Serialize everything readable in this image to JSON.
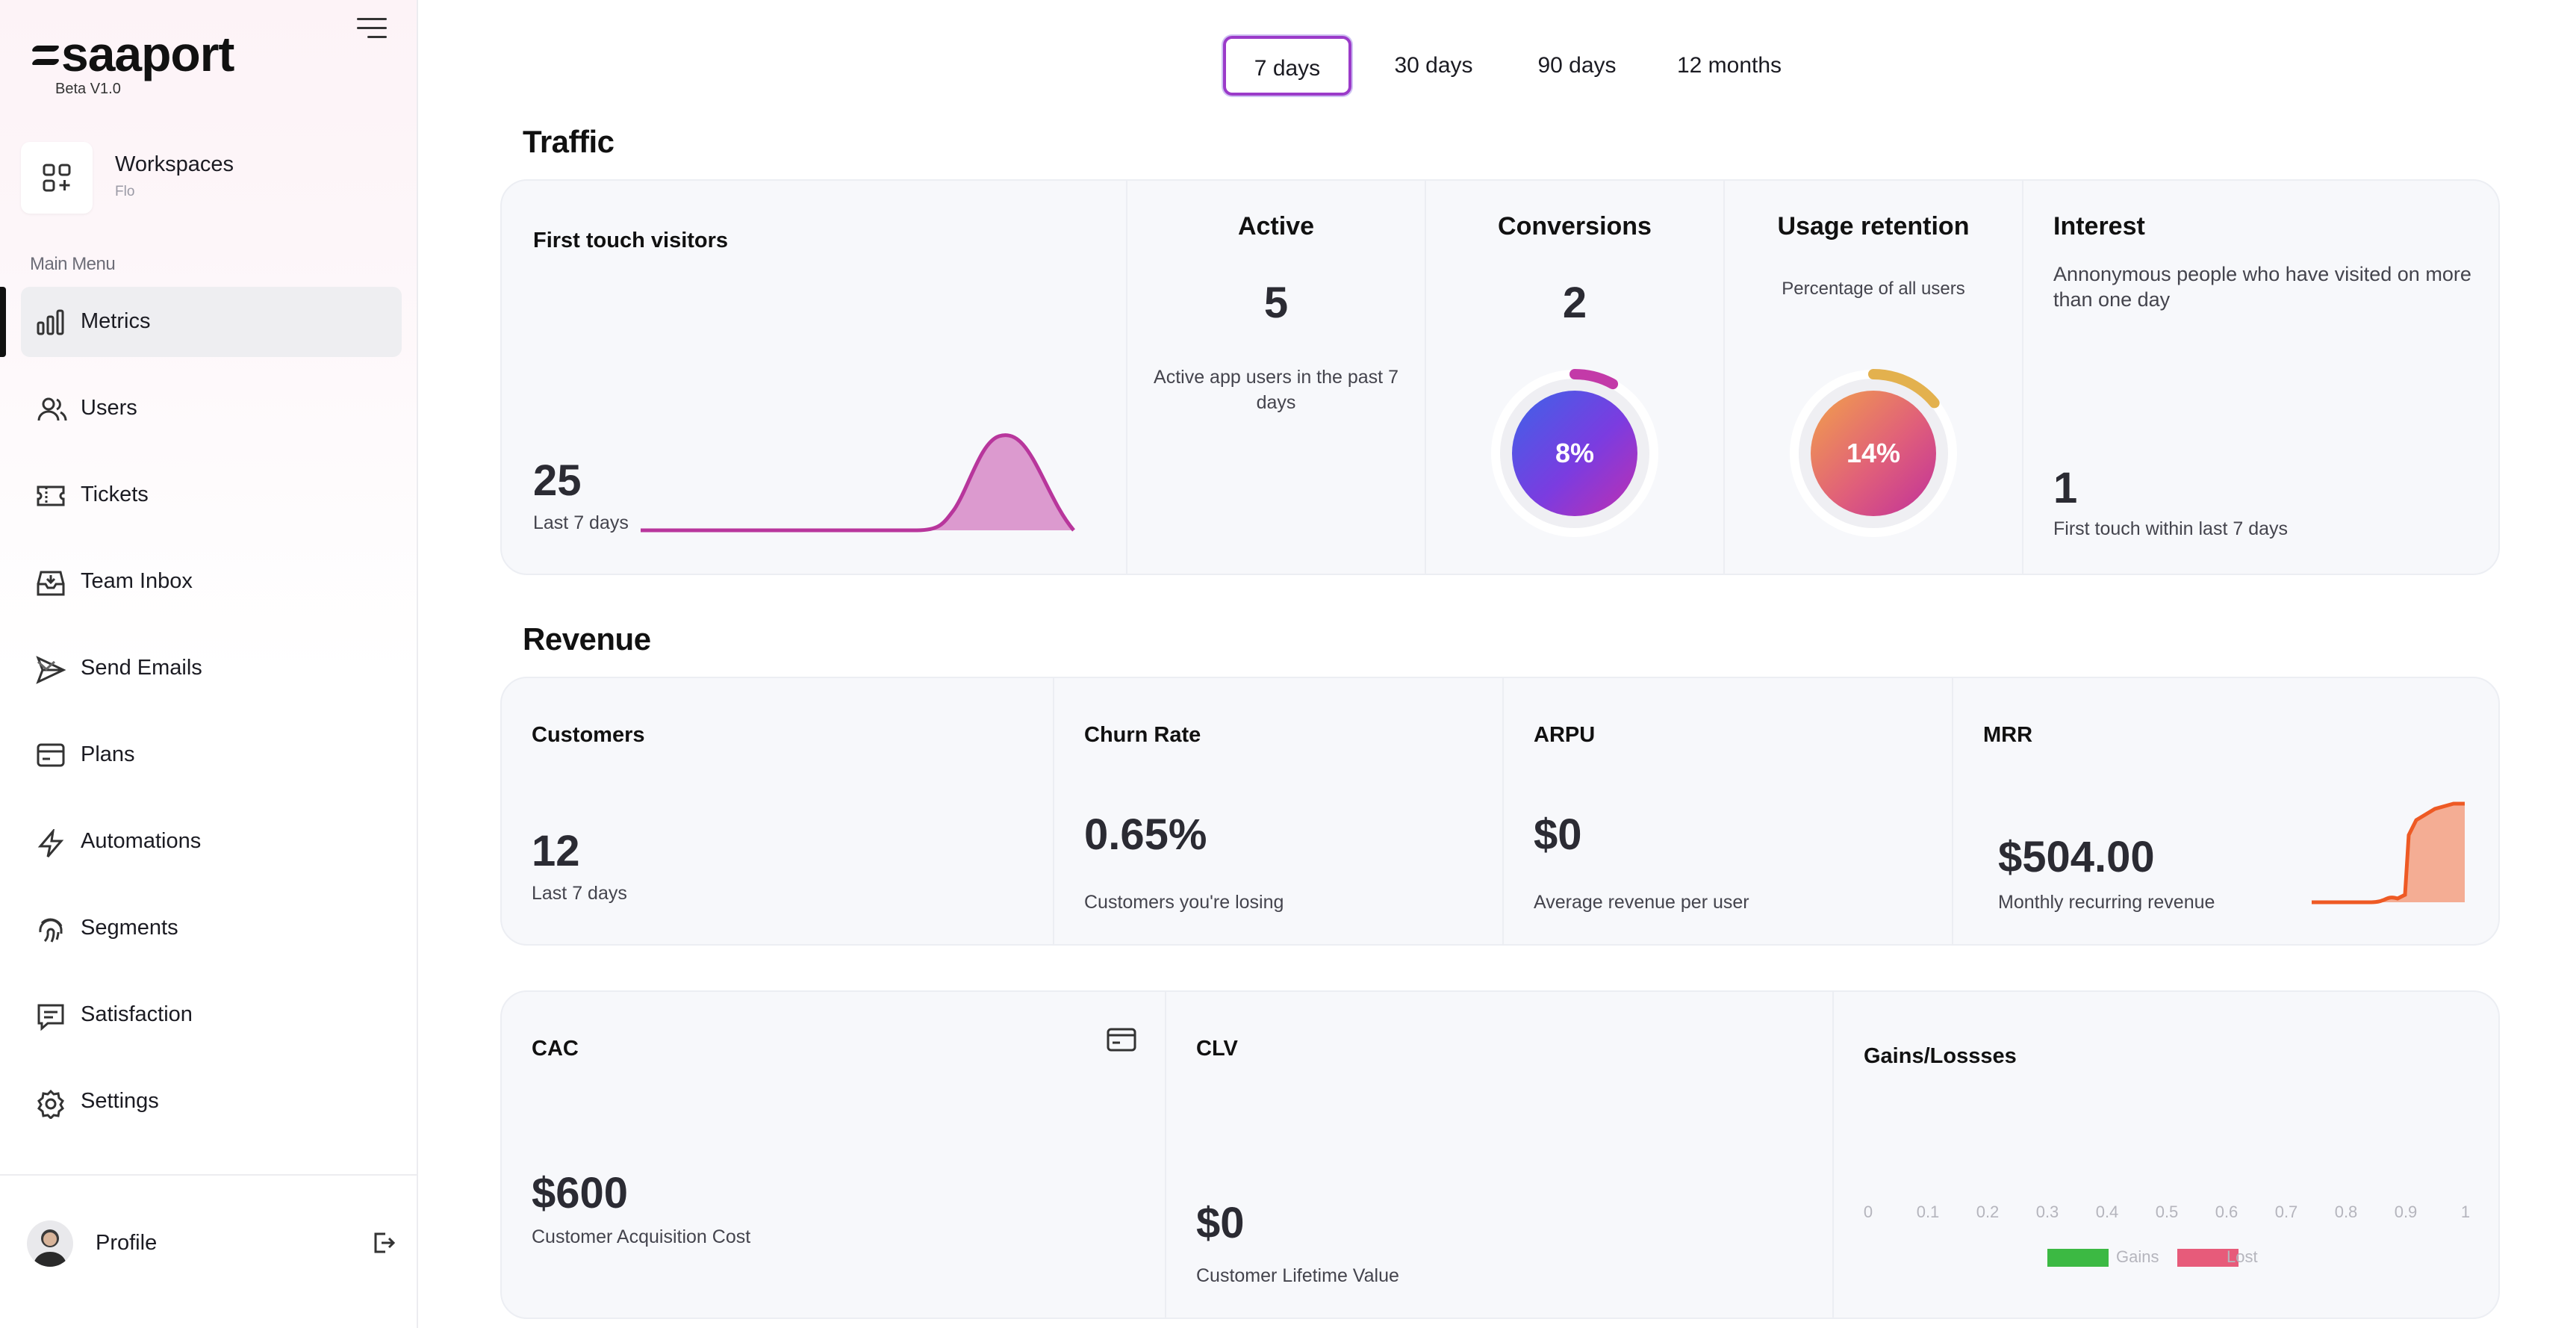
{
  "brand": {
    "logo_text": "saaport",
    "version": "Beta V1.0"
  },
  "workspace": {
    "title": "Workspaces",
    "subtitle": "Flo"
  },
  "sidebar": {
    "menu_label": "Main Menu",
    "items": [
      {
        "label": "Metrics",
        "icon": "bar-chart-icon",
        "active": true
      },
      {
        "label": "Users",
        "icon": "users-icon"
      },
      {
        "label": "Tickets",
        "icon": "ticket-icon"
      },
      {
        "label": "Team Inbox",
        "icon": "inbox-icon"
      },
      {
        "label": "Send Emails",
        "icon": "send-icon",
        "has_submenu": true
      },
      {
        "label": "Plans",
        "icon": "credit-card-icon"
      },
      {
        "label": "Automations",
        "icon": "lightning-icon"
      },
      {
        "label": "Segments",
        "icon": "fingerprint-icon"
      },
      {
        "label": "Satisfaction",
        "icon": "message-icon"
      },
      {
        "label": "Settings",
        "icon": "gear-icon"
      }
    ],
    "profile_label": "Profile"
  },
  "range_tabs": [
    {
      "label": "7 days",
      "active": true
    },
    {
      "label": "30 days"
    },
    {
      "label": "90 days"
    },
    {
      "label": "12 months"
    }
  ],
  "traffic": {
    "title": "Traffic",
    "first_touch": {
      "title": "First touch visitors",
      "value": "25",
      "caption": "Last 7 days"
    },
    "active": {
      "title": "Active",
      "value": "5",
      "caption": "Active app users in the past 7 days"
    },
    "conversions": {
      "title": "Conversions",
      "value": "2",
      "percent_label": "8%",
      "percent": 8
    },
    "usage_retention": {
      "title": "Usage retention",
      "caption": "Percentage of all users",
      "percent_label": "14%",
      "percent": 14
    },
    "interest": {
      "title": "Interest",
      "description": "Annonymous people who have visited on more than one day",
      "value": "1",
      "caption": "First touch within last 7 days"
    }
  },
  "revenue": {
    "title": "Revenue",
    "customers": {
      "title": "Customers",
      "value": "12",
      "caption": "Last 7 days"
    },
    "churn": {
      "title": "Churn Rate",
      "value": "0.65%",
      "caption": "Customers you're losing"
    },
    "arpu": {
      "title": "ARPU",
      "value": "$0",
      "caption": "Average revenue per user"
    },
    "mrr": {
      "title": "MRR",
      "value": "$504.00",
      "caption": "Monthly recurring revenue"
    }
  },
  "cac": {
    "title": "CAC",
    "value": "$600",
    "caption": "Customer Acquisition Cost"
  },
  "clv": {
    "title": "CLV",
    "value": "$0",
    "caption": "Customer Lifetime Value"
  },
  "gains_losses": {
    "title": "Gains/Lossses",
    "ticks": [
      "0",
      "0.1",
      "0.2",
      "0.3",
      "0.4",
      "0.5",
      "0.6",
      "0.7",
      "0.8",
      "0.9",
      "1"
    ],
    "legend": [
      {
        "label": "Gains",
        "color": "#3cb943"
      },
      {
        "label": "Lost",
        "color": "#e75b7a"
      }
    ]
  },
  "colors": {
    "accent": "#9b3bc9",
    "sparkline_pink": "#b8369c",
    "mrr_orange": "#ee5a24"
  }
}
